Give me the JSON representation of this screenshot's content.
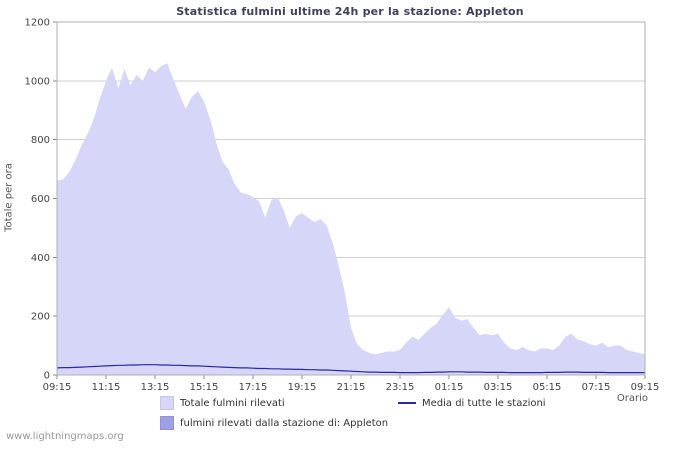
{
  "watermark": "www.lightningmaps.org",
  "chart_data": {
    "type": "area",
    "title": "Statistica fulmini ultime 24h per la stazione: Appleton",
    "ylabel": "Totale per ora",
    "xlabel": "Orario",
    "ylim": [
      0,
      1200
    ],
    "yticks": [
      0,
      200,
      400,
      600,
      800,
      1000,
      1200
    ],
    "grid": "horizontal",
    "legend_position": "bottom",
    "x_range_hours": [
      0,
      24
    ],
    "xticks": {
      "positions_hours": [
        0,
        2,
        4,
        6,
        8,
        10,
        12,
        14,
        16,
        18,
        20,
        22,
        24
      ],
      "labels": [
        "09:15",
        "11:15",
        "13:15",
        "15:15",
        "17:15",
        "19:15",
        "21:15",
        "23:15",
        "01:15",
        "03:15",
        "05:15",
        "07:15",
        "09:15"
      ]
    },
    "series": [
      {
        "name": "Totale fulmini rilevati",
        "kind": "area",
        "color": "#d6d6f8",
        "values": [
          660,
          665,
          690,
          730,
          780,
          820,
          870,
          940,
          1000,
          1045,
          975,
          1040,
          985,
          1020,
          1000,
          1045,
          1030,
          1050,
          1060,
          1005,
          955,
          905,
          945,
          965,
          930,
          870,
          790,
          725,
          700,
          650,
          620,
          615,
          605,
          590,
          535,
          595,
          605,
          560,
          500,
          540,
          550,
          535,
          520,
          530,
          510,
          450,
          370,
          280,
          160,
          105,
          85,
          75,
          70,
          75,
          80,
          80,
          85,
          110,
          130,
          120,
          140,
          160,
          175,
          205,
          230,
          195,
          185,
          190,
          160,
          135,
          140,
          135,
          140,
          110,
          90,
          85,
          95,
          85,
          80,
          90,
          90,
          85,
          100,
          130,
          140,
          120,
          115,
          105,
          100,
          110,
          95,
          100,
          100,
          85,
          80,
          75,
          70
        ]
      },
      {
        "name": "fulmini rilevati dalla stazione di: Appleton",
        "kind": "area",
        "color": "#9e9ee9",
        "values": [
          0,
          0,
          0,
          0,
          0,
          0,
          0,
          0,
          0,
          0,
          0,
          0,
          0,
          0,
          0,
          0,
          0,
          0,
          0,
          0,
          0,
          0,
          0,
          0,
          0,
          0,
          0,
          0,
          0,
          0,
          0,
          0,
          0,
          0,
          0,
          0,
          0,
          0,
          0,
          0,
          0,
          0,
          0,
          0,
          0,
          0,
          0,
          0,
          0,
          0,
          0,
          0,
          0,
          0,
          0,
          0,
          0,
          0,
          0,
          0,
          0,
          0,
          0,
          0,
          0,
          0,
          0,
          0,
          0,
          0,
          0,
          0,
          0,
          0,
          0,
          0,
          0,
          0,
          0,
          0,
          0,
          0,
          0,
          0,
          0,
          0,
          0,
          0,
          0,
          0,
          0,
          0,
          0,
          0,
          0,
          0,
          0
        ]
      },
      {
        "name": "Media di tutte le stazioni",
        "kind": "line",
        "color": "#2929a3",
        "values": [
          24,
          25,
          25,
          26,
          27,
          28,
          29,
          30,
          31,
          32,
          33,
          33,
          34,
          34,
          35,
          35,
          35,
          34,
          34,
          33,
          33,
          32,
          31,
          31,
          30,
          29,
          28,
          27,
          26,
          25,
          24,
          24,
          23,
          22,
          22,
          21,
          21,
          20,
          20,
          19,
          19,
          18,
          18,
          17,
          17,
          16,
          15,
          14,
          13,
          12,
          11,
          10,
          10,
          9,
          9,
          9,
          8,
          8,
          8,
          8,
          9,
          9,
          10,
          10,
          11,
          11,
          11,
          10,
          10,
          10,
          9,
          9,
          9,
          9,
          8,
          8,
          8,
          8,
          8,
          8,
          9,
          9,
          9,
          10,
          10,
          10,
          9,
          9,
          9,
          9,
          8,
          8,
          8,
          8,
          8,
          8,
          8
        ]
      }
    ]
  }
}
